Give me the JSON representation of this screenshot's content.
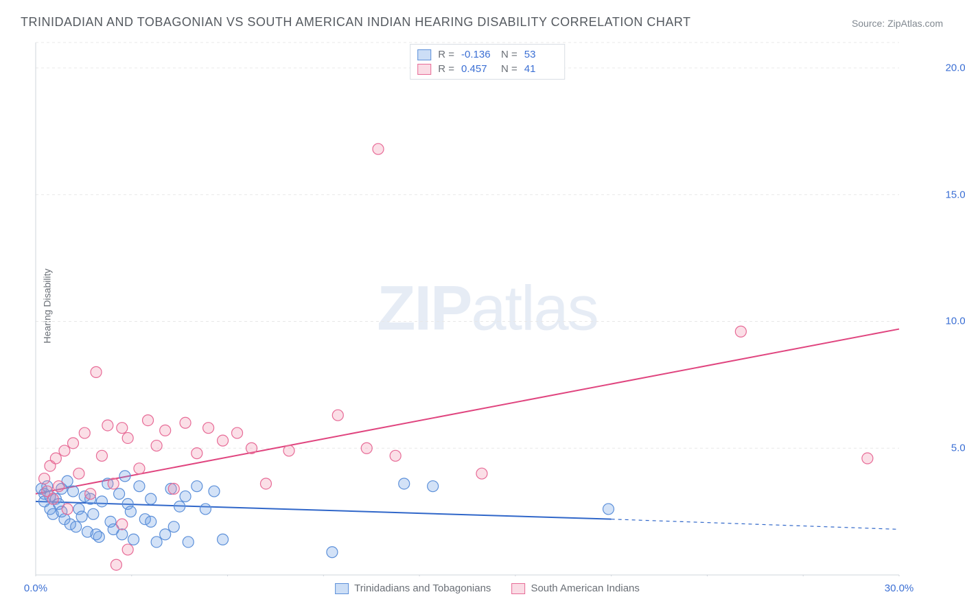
{
  "title": "TRINIDADIAN AND TOBAGONIAN VS SOUTH AMERICAN INDIAN HEARING DISABILITY CORRELATION CHART",
  "source": "Source: ZipAtlas.com",
  "y_axis_label": "Hearing Disability",
  "watermark_bold": "ZIP",
  "watermark_light": "atlas",
  "chart": {
    "type": "scatter",
    "xlim": [
      0,
      30
    ],
    "ylim": [
      0,
      21
    ],
    "x_ticks": [
      0,
      30
    ],
    "x_tick_labels": [
      "0.0%",
      "30.0%"
    ],
    "y_ticks": [
      5,
      10,
      15,
      20
    ],
    "y_tick_labels": [
      "5.0%",
      "10.0%",
      "15.0%",
      "20.0%"
    ],
    "grid_color": "#e8e8e8",
    "axis_color": "#cfd4db",
    "background_color": "#ffffff",
    "tick_color": "#3b6fd4",
    "label_color": "#6a6f76",
    "marker_radius": 8,
    "marker_stroke_width": 1.2,
    "series": [
      {
        "name": "Trinidadians and Tobagonians",
        "fill": "rgba(110,160,230,0.30)",
        "stroke": "#5b8fd9",
        "R": "-0.136",
        "N": "53",
        "trend": {
          "x1": 0,
          "y1": 2.9,
          "x2": 20,
          "y2": 2.2,
          "color": "#2f66c9",
          "width": 2,
          "dash_to": 30,
          "dash_y": 1.8
        },
        "points": [
          [
            0.2,
            3.4
          ],
          [
            0.3,
            3.2
          ],
          [
            0.3,
            2.9
          ],
          [
            0.4,
            3.5
          ],
          [
            0.5,
            2.6
          ],
          [
            0.5,
            3.1
          ],
          [
            0.6,
            2.4
          ],
          [
            0.7,
            3.0
          ],
          [
            0.8,
            2.8
          ],
          [
            0.9,
            2.5
          ],
          [
            0.9,
            3.4
          ],
          [
            1.0,
            2.2
          ],
          [
            1.1,
            3.7
          ],
          [
            1.2,
            2.0
          ],
          [
            1.3,
            3.3
          ],
          [
            1.4,
            1.9
          ],
          [
            1.5,
            2.6
          ],
          [
            1.7,
            3.1
          ],
          [
            1.8,
            1.7
          ],
          [
            1.9,
            3.0
          ],
          [
            2.0,
            2.4
          ],
          [
            2.2,
            1.5
          ],
          [
            2.3,
            2.9
          ],
          [
            2.5,
            3.6
          ],
          [
            2.7,
            1.8
          ],
          [
            2.9,
            3.2
          ],
          [
            3.0,
            1.6
          ],
          [
            3.2,
            2.8
          ],
          [
            3.4,
            1.4
          ],
          [
            3.6,
            3.5
          ],
          [
            3.8,
            2.2
          ],
          [
            4.0,
            3.0
          ],
          [
            4.2,
            1.3
          ],
          [
            4.5,
            1.6
          ],
          [
            4.7,
            3.4
          ],
          [
            5.0,
            2.7
          ],
          [
            5.3,
            1.3
          ],
          [
            5.6,
            3.5
          ],
          [
            5.9,
            2.6
          ],
          [
            6.2,
            3.3
          ],
          [
            6.5,
            1.4
          ],
          [
            4.0,
            2.1
          ],
          [
            3.1,
            3.9
          ],
          [
            10.3,
            0.9
          ],
          [
            12.8,
            3.6
          ],
          [
            13.8,
            3.5
          ],
          [
            19.9,
            2.6
          ],
          [
            2.1,
            1.6
          ],
          [
            2.6,
            2.1
          ],
          [
            3.3,
            2.5
          ],
          [
            4.8,
            1.9
          ],
          [
            5.2,
            3.1
          ],
          [
            1.6,
            2.3
          ]
        ]
      },
      {
        "name": "South American Indians",
        "fill": "rgba(240,140,170,0.28)",
        "stroke": "#e76a96",
        "R": "0.457",
        "N": "41",
        "trend": {
          "x1": 0,
          "y1": 3.2,
          "x2": 30,
          "y2": 9.7,
          "color": "#e0457f",
          "width": 2
        },
        "points": [
          [
            0.3,
            3.8
          ],
          [
            0.4,
            3.3
          ],
          [
            0.5,
            4.3
          ],
          [
            0.6,
            3.0
          ],
          [
            0.7,
            4.6
          ],
          [
            0.8,
            3.5
          ],
          [
            1.0,
            4.9
          ],
          [
            1.1,
            2.6
          ],
          [
            1.3,
            5.2
          ],
          [
            1.5,
            4.0
          ],
          [
            1.7,
            5.6
          ],
          [
            1.9,
            3.2
          ],
          [
            2.1,
            8.0
          ],
          [
            2.3,
            4.7
          ],
          [
            2.5,
            5.9
          ],
          [
            2.7,
            3.6
          ],
          [
            3.0,
            2.0
          ],
          [
            3.2,
            5.4
          ],
          [
            3.0,
            5.8
          ],
          [
            3.6,
            4.2
          ],
          [
            3.9,
            6.1
          ],
          [
            4.2,
            5.1
          ],
          [
            4.5,
            5.7
          ],
          [
            4.8,
            3.4
          ],
          [
            5.2,
            6.0
          ],
          [
            5.6,
            4.8
          ],
          [
            6.0,
            5.8
          ],
          [
            6.5,
            5.3
          ],
          [
            7.0,
            5.6
          ],
          [
            7.5,
            5.0
          ],
          [
            8.0,
            3.6
          ],
          [
            8.8,
            4.9
          ],
          [
            10.5,
            6.3
          ],
          [
            11.5,
            5.0
          ],
          [
            11.9,
            16.8
          ],
          [
            12.5,
            4.7
          ],
          [
            15.5,
            4.0
          ],
          [
            24.5,
            9.6
          ],
          [
            28.9,
            4.6
          ],
          [
            3.2,
            1.0
          ],
          [
            2.8,
            0.4
          ]
        ]
      }
    ]
  },
  "legend_bottom": {
    "series1": "Trinidadians and Tobagonians",
    "series2": "South American Indians"
  },
  "legend_top": {
    "r_label": "R =",
    "n_label": "N ="
  }
}
